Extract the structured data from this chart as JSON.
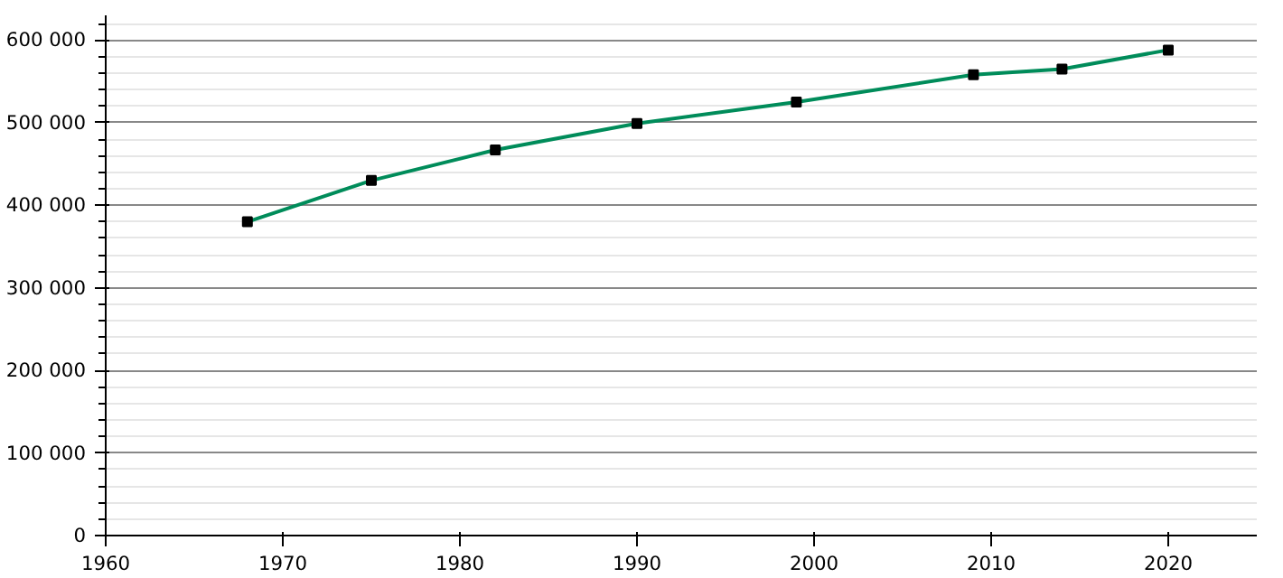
{
  "chart_data": {
    "type": "line",
    "x": [
      1968,
      1975,
      1982,
      1990,
      1999,
      2009,
      2014,
      2020
    ],
    "series": [
      {
        "color": "#008c5a",
        "values": [
          380000,
          430000,
          467000,
          499000,
          525000,
          558000,
          565000,
          588000
        ]
      }
    ],
    "xlim": [
      1960,
      2025
    ],
    "ylim": [
      0,
      630000
    ],
    "xticks": [
      1960,
      1970,
      1980,
      1990,
      2000,
      2010,
      2020
    ],
    "yticks": [
      {
        "value": 0,
        "label": "0"
      },
      {
        "value": 100000,
        "label": "100 000"
      },
      {
        "value": 200000,
        "label": "200 000"
      },
      {
        "value": 300000,
        "label": "300 000"
      },
      {
        "value": 400000,
        "label": "400 000"
      },
      {
        "value": 500000,
        "label": "500 000"
      },
      {
        "value": 600000,
        "label": "600 000"
      }
    ],
    "grid": "y",
    "marker": "square",
    "line_style": "solid"
  }
}
